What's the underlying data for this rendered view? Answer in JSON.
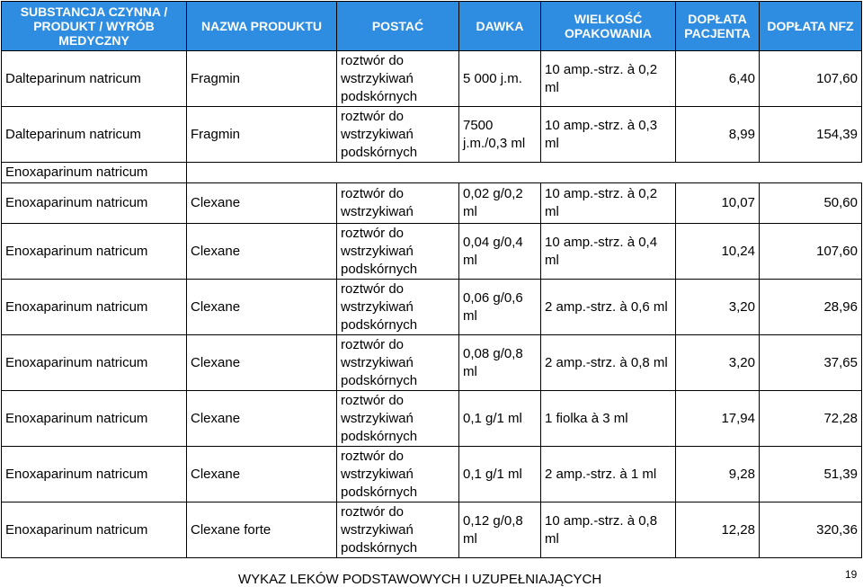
{
  "header": {
    "substance": "SUBSTANCJA CZYNNA / PRODUKT / WYRÓB MEDYCZNY",
    "product": "NAZWA PRODUKTU",
    "form": "POSTAĆ",
    "dose": "DAWKA",
    "package": "WIELKOŚĆ OPAKOWANIA",
    "patient_fee": "DOPŁATA PACJENTA",
    "nfz_fee": "DOPŁATA NFZ"
  },
  "group_label": "Enoxaparinum natricum",
  "rows": [
    {
      "substance": "Dalteparinum natricum",
      "product": "Fragmin",
      "form": "roztwór do wstrzykiwań podskórnych",
      "dose": "5 000 j.m.",
      "package": "10 amp.-strz. à 0,2 ml",
      "patient": "6,40",
      "nfz": "107,60"
    },
    {
      "substance": "Dalteparinum natricum",
      "product": "Fragmin",
      "form": "roztwór do wstrzykiwań podskórnych",
      "dose": "7500 j.m./0,3 ml",
      "package": "10 amp.-strz. à 0,3 ml",
      "patient": "8,99",
      "nfz": "154,39"
    },
    {
      "substance": "Enoxaparinum natricum",
      "product": "Clexane",
      "form": "roztwór do wstrzykiwań",
      "dose": "0,02 g/0,2 ml",
      "package": "10 amp.-strz. à 0,2 ml",
      "patient": "10,07",
      "nfz": "50,60"
    },
    {
      "substance": "Enoxaparinum natricum",
      "product": "Clexane",
      "form": "roztwór do wstrzykiwań podskórnych",
      "dose": "0,04 g/0,4 ml",
      "package": "10 amp.-strz. à 0,4 ml",
      "patient": "10,24",
      "nfz": "107,60"
    },
    {
      "substance": "Enoxaparinum natricum",
      "product": "Clexane",
      "form": "roztwór do wstrzykiwań podskórnych",
      "dose": "0,06 g/0,6 ml",
      "package": "2 amp.-strz. à 0,6 ml",
      "patient": "3,20",
      "nfz": "28,96"
    },
    {
      "substance": "Enoxaparinum natricum",
      "product": "Clexane",
      "form": "roztwór do wstrzykiwań podskórnych",
      "dose": "0,08 g/0,8 ml",
      "package": "2 amp.-strz. à 0,8 ml",
      "patient": "3,20",
      "nfz": "37,65"
    },
    {
      "substance": "Enoxaparinum natricum",
      "product": "Clexane",
      "form": "roztwór do wstrzykiwań podskórnych",
      "dose": "0,1 g/1 ml",
      "package": "1 fiolka à 3 ml",
      "patient": "17,94",
      "nfz": "72,28"
    },
    {
      "substance": "Enoxaparinum natricum",
      "product": "Clexane",
      "form": "roztwór do wstrzykiwań podskórnych",
      "dose": "0,1 g/1 ml",
      "package": "2 amp.-strz. à 1 ml",
      "patient": "9,28",
      "nfz": "51,39"
    },
    {
      "substance": "Enoxaparinum natricum",
      "product": "Clexane forte",
      "form": "roztwór do wstrzykiwań podskórnych",
      "dose": "0,12 g/0,8 ml",
      "package": "10 amp.-strz. à 0,8 ml",
      "patient": "12,28",
      "nfz": "320,36"
    }
  ],
  "footer": {
    "title": "WYKAZ LEKÓW PODSTAWOWYCH I UZUPEŁNIAJĄCYCH",
    "page": "19"
  },
  "colors": {
    "header_bg": "#2e8de0",
    "header_text": "#ffffff"
  }
}
